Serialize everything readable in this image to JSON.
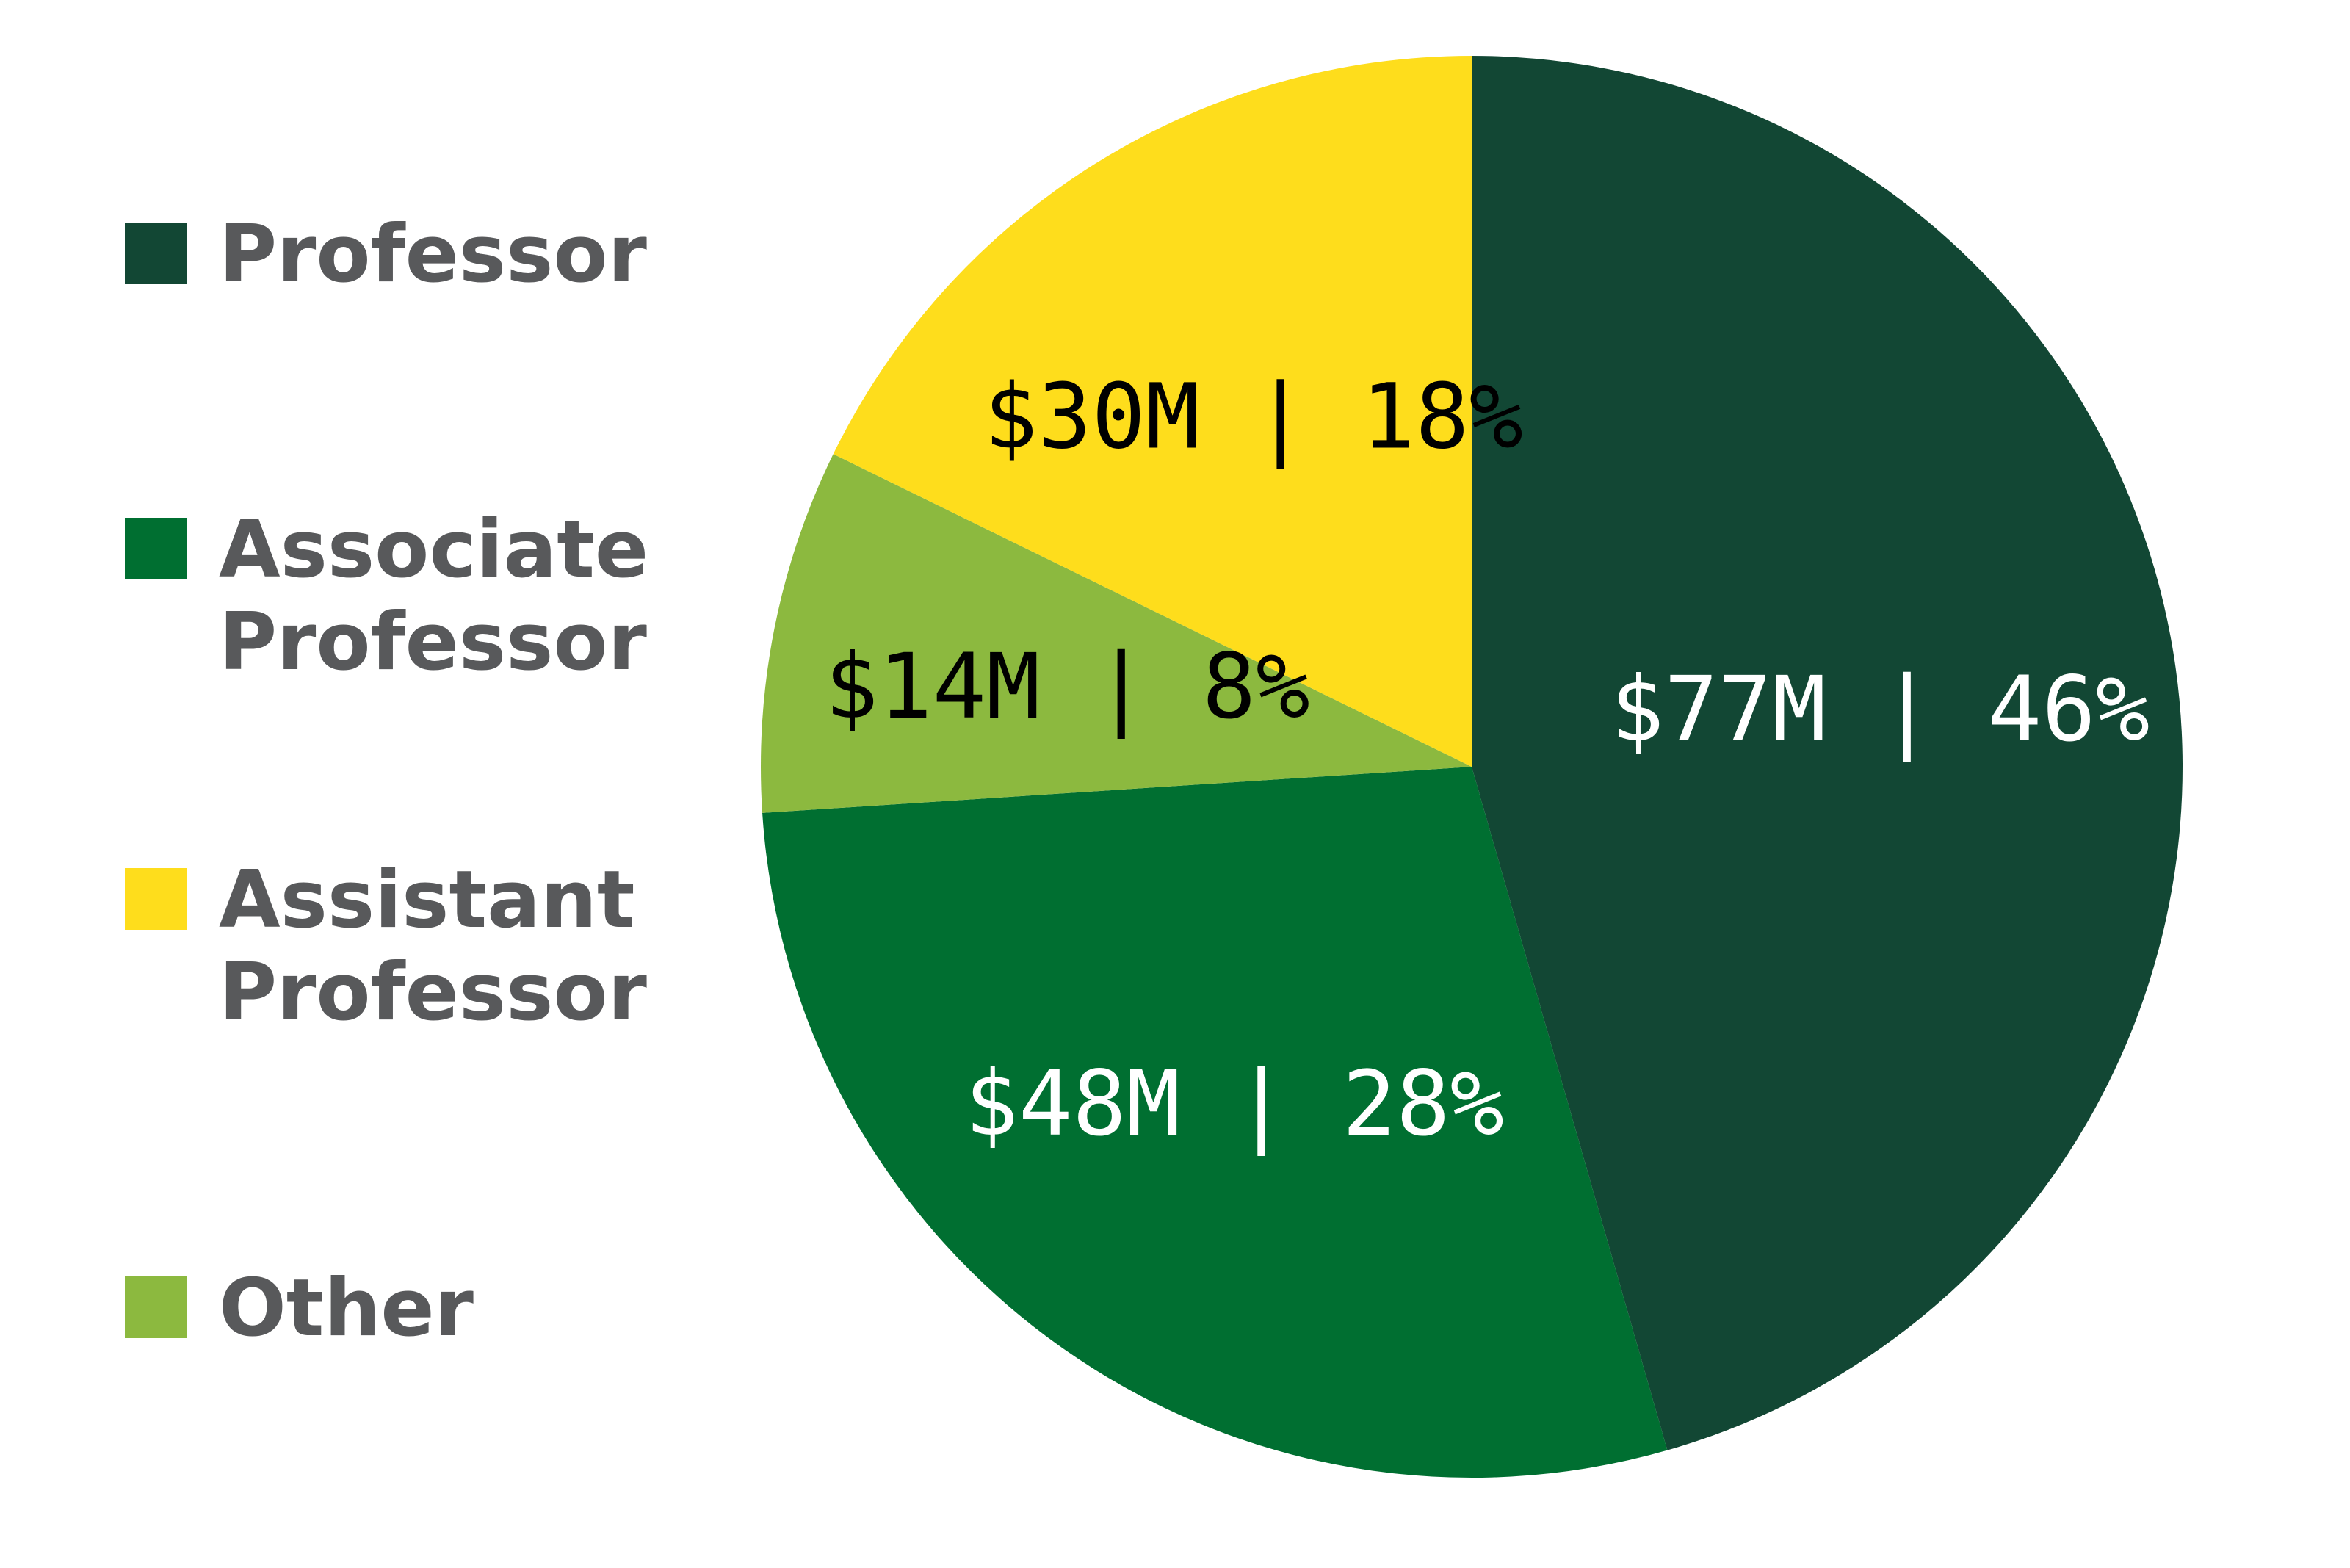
{
  "chart_data": {
    "type": "pie",
    "title": "",
    "categories": [
      "Professor",
      "Associate Professor",
      "Assistant Professor",
      "Other"
    ],
    "values": [
      77,
      48,
      30,
      14
    ],
    "percentages": [
      46,
      28,
      18,
      8
    ],
    "unit": "$M",
    "data_labels": [
      "$77M | 46%",
      "$48M | 28%",
      "$30M | 18%",
      "$14M | 8%"
    ],
    "colors": [
      "#124734",
      "#006f31",
      "#fedd1c",
      "#8cb93f"
    ],
    "label_colors": [
      "#ffffff",
      "#ffffff",
      "#000000",
      "#000000"
    ],
    "slice_order": [
      "Professor",
      "Associate Professor",
      "Other",
      "Assistant Professor"
    ],
    "legend_position": "left",
    "legend": [
      {
        "lines": [
          "Professor"
        ],
        "color": "#124734"
      },
      {
        "lines": [
          "Associate",
          "Professor"
        ],
        "color": "#006f31"
      },
      {
        "lines": [
          "Assistant",
          "Professor"
        ],
        "color": "#fedd1c"
      },
      {
        "lines": [
          "Other"
        ],
        "color": "#8cb93f"
      }
    ]
  }
}
